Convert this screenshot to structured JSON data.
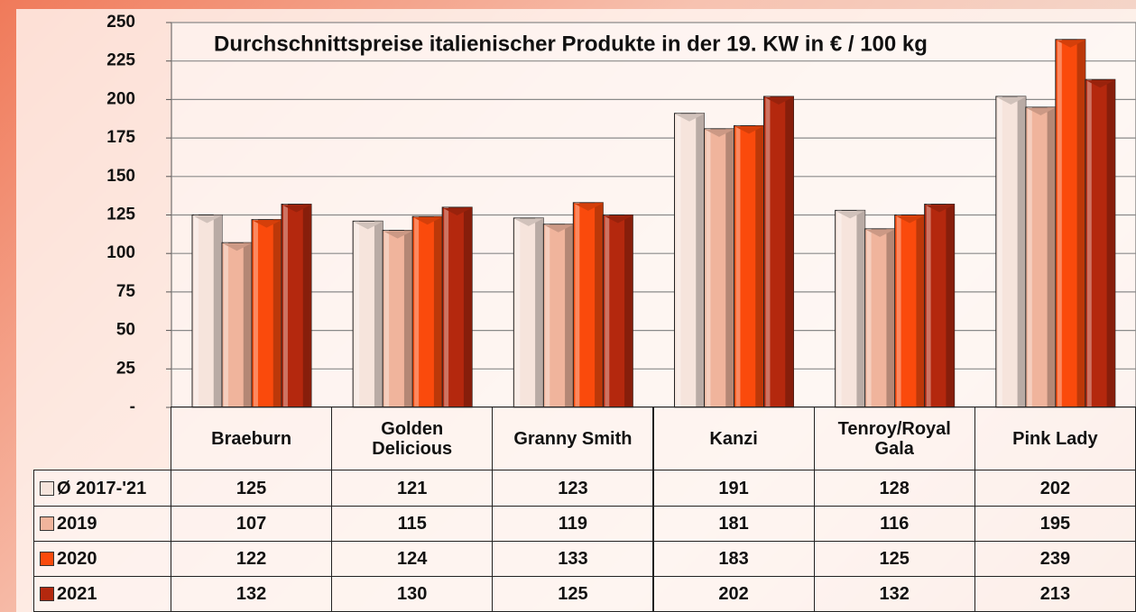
{
  "chart_data": {
    "type": "bar",
    "title": "Durchschnittspreise italienischer Produkte in der 19. KW in € / 100 kg",
    "categories": [
      "Braeburn",
      "Golden Delicious",
      "Granny Smith",
      "Kanzi",
      "Tenroy/Royal Gala",
      "Pink Lady"
    ],
    "series": [
      {
        "name": "Ø 2017-'21",
        "color": "#f6e4dc",
        "values": [
          125,
          121,
          123,
          191,
          128,
          202
        ]
      },
      {
        "name": "2019",
        "color": "#f0b49c",
        "values": [
          107,
          115,
          119,
          181,
          116,
          195
        ]
      },
      {
        "name": "2020",
        "color": "#fa4a0c",
        "values": [
          122,
          124,
          133,
          183,
          125,
          239
        ]
      },
      {
        "name": "2021",
        "color": "#b4280e",
        "values": [
          132,
          130,
          125,
          202,
          132,
          213
        ]
      }
    ],
    "ylim": [
      0,
      250
    ],
    "yticks": [
      {
        "value": 0,
        "label": "-"
      },
      25,
      50,
      75,
      100,
      125,
      150,
      175,
      200,
      225,
      250
    ],
    "grid": true
  }
}
